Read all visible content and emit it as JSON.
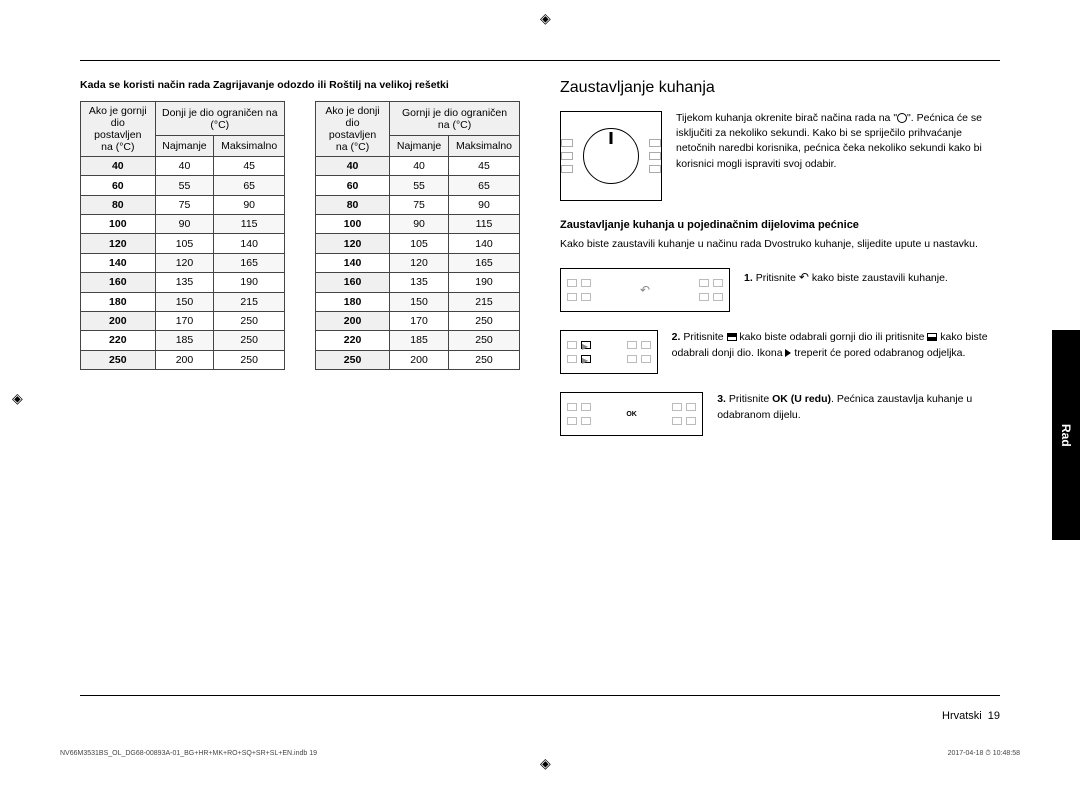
{
  "crop_glyph": "◈",
  "rule_color": "#000000",
  "caption_left": "Kada se koristi način rada Zagrijavanje odozdo ili Roštilj na velikoj rešetki",
  "table_left": {
    "header_main_col": "Ako je gornji dio postavljen na (°C)",
    "header_span": "Donji je dio ograničen na (°C)",
    "sub1": "Najmanje",
    "sub2": "Maksimalno",
    "rows": [
      [
        "40",
        "40",
        "45"
      ],
      [
        "60",
        "55",
        "65"
      ],
      [
        "80",
        "75",
        "90"
      ],
      [
        "100",
        "90",
        "115"
      ],
      [
        "120",
        "105",
        "140"
      ],
      [
        "140",
        "120",
        "165"
      ],
      [
        "160",
        "135",
        "190"
      ],
      [
        "180",
        "150",
        "215"
      ],
      [
        "200",
        "170",
        "250"
      ],
      [
        "220",
        "185",
        "250"
      ],
      [
        "250",
        "200",
        "250"
      ]
    ]
  },
  "table_right": {
    "header_main_col": "Ako je donji dio postavljen na (°C)",
    "header_span": "Gornji je dio ograničen na (°C)",
    "sub1": "Najmanje",
    "sub2": "Maksimalno",
    "rows": [
      [
        "40",
        "40",
        "45"
      ],
      [
        "60",
        "55",
        "65"
      ],
      [
        "80",
        "75",
        "90"
      ],
      [
        "100",
        "90",
        "115"
      ],
      [
        "120",
        "105",
        "140"
      ],
      [
        "140",
        "120",
        "165"
      ],
      [
        "160",
        "135",
        "190"
      ],
      [
        "180",
        "150",
        "215"
      ],
      [
        "200",
        "170",
        "250"
      ],
      [
        "220",
        "185",
        "250"
      ],
      [
        "250",
        "200",
        "250"
      ]
    ]
  },
  "right_col": {
    "heading": "Zaustavljanje kuhanja",
    "dial_text_pre": "Tijekom kuhanja okrenite birač načina rada na \"",
    "dial_text_post": "\". Pećnica će se isključiti za nekoliko sekundi. Kako bi se spriječilo prihvaćanje netočnih naredbi korisnika, pećnica čeka nekoliko sekundi kako bi korisnici mogli ispraviti svoj odabir.",
    "sub_heading": "Zaustavljanje kuhanja u pojedinačnim dijelovima pećnice",
    "sub_intro": "Kako biste zaustavili kuhanje u načinu rada Dvostruko kuhanje, slijedite upute u nastavku.",
    "steps": [
      {
        "n": "1.",
        "pre": "Pritisnite ",
        "icon": "back",
        "post": " kako biste zaustavili kuhanje."
      },
      {
        "n": "2.",
        "pre": "Pritisnite ",
        "icon": "top",
        "mid": " kako biste odabrali gornji dio ili pritisnite ",
        "icon2": "bot",
        "post": " kako biste odabrali donji dio. Ikona ",
        "post_icon": "tri",
        "post2": " treperit će pored odabranog odjeljka."
      },
      {
        "n": "3.",
        "pre": "Pritisnite ",
        "bold": "OK (U redu)",
        "post": ". Pećnica zaustavlja kuhanje u odabranom dijelu."
      }
    ]
  },
  "side_tab": "Rad",
  "footer_lang": "Hrvatski",
  "footer_page": "19",
  "microfooter_left": "NV66M3531BS_OL_DG68-00893A-01_BG+HR+MK+RO+SQ+SR+SL+EN.indb   19",
  "microfooter_right": "2017-04-18   ⏱ 10:48:58"
}
